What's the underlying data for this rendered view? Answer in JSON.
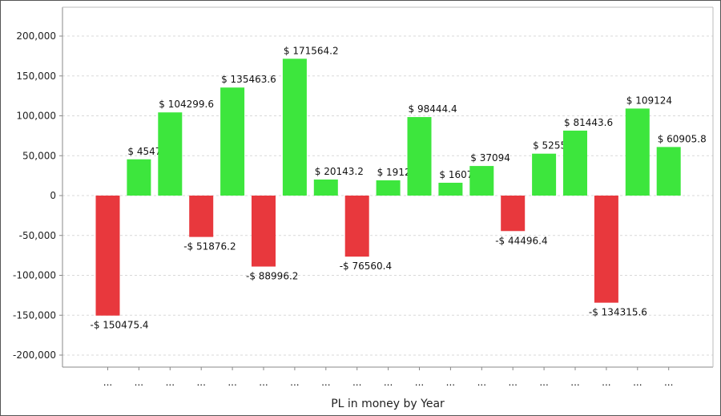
{
  "chart_data": {
    "type": "bar",
    "xlabel": "PL in money by Year",
    "ylabel": "",
    "ylim": [
      -200000,
      200000
    ],
    "yticks": [
      200000,
      150000,
      100000,
      50000,
      0,
      -50000,
      -100000,
      -150000,
      -200000
    ],
    "ytick_labels": [
      "200,000",
      "150,000",
      "100,000",
      "50,000",
      "0",
      "-50,000",
      "-100,000",
      "-150,000",
      "-200,000"
    ],
    "grid": true,
    "categories": [
      "...",
      "...",
      "...",
      "...",
      "...",
      "...",
      "...",
      "...",
      "...",
      "...",
      "...",
      "...",
      "...",
      "...",
      "...",
      "...",
      "...",
      "...",
      "..."
    ],
    "values": [
      -150475.4,
      45476,
      104299.6,
      -51876.2,
      135463.6,
      -88996.2,
      171564.2,
      20143.2,
      -76560.4,
      19122,
      98444.4,
      16076,
      37094,
      -44496.4,
      52554,
      81443.6,
      -134315.6,
      109124,
      60905.8
    ],
    "data_labels": [
      "-$ 150475.4",
      "$ 45476",
      "$ 104299.6",
      "-$ 51876.2",
      "$ 135463.6",
      "-$ 88996.2",
      "$ 171564.2",
      "$ 20143.2",
      "-$ 76560.4",
      "$ 19122.",
      "$ 98444.4",
      "$ 16076.",
      "$ 37094",
      "-$ 44496.4",
      "$ 52554",
      "$ 81443.6",
      "-$ 134315.6",
      "$ 109124",
      "$ 60905.8"
    ],
    "colors": {
      "positive": "#3de63d",
      "negative": "#e8383d",
      "grid": "#d9d9d9",
      "axis": "#888888"
    }
  }
}
